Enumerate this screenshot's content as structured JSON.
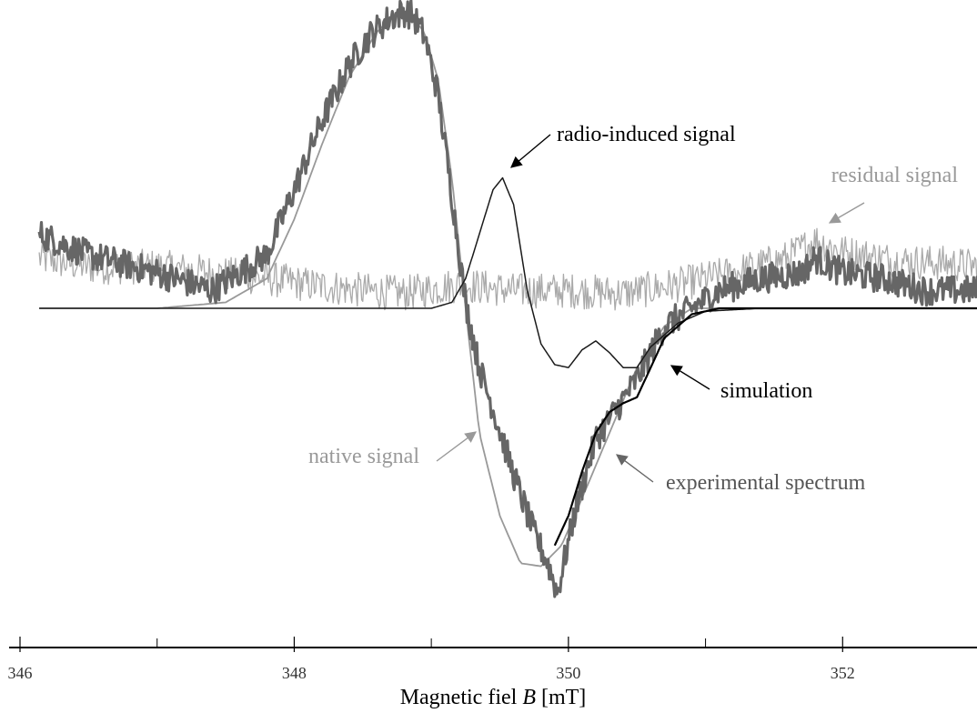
{
  "chart_data": {
    "type": "line",
    "title": "",
    "xlabel": {
      "prefix": "Magnetic fiel ",
      "var": "B",
      "unit": " [mT]"
    },
    "ylabel": "",
    "xlim": [
      346,
      353
    ],
    "ylim": [
      -1.0,
      1.0
    ],
    "x_ticks": [
      346,
      348,
      350,
      352
    ],
    "x_ticks_minor": [
      346,
      347,
      348,
      349,
      350,
      351,
      352
    ],
    "grid": false,
    "legend": "none",
    "series": [
      {
        "name": "experimental spectrum",
        "color": "#666666",
        "x": [
          346.14,
          346.5,
          347.0,
          347.4,
          347.8,
          348.0,
          348.2,
          348.4,
          348.55,
          348.7,
          348.8,
          348.86,
          348.95,
          349.05,
          349.15,
          349.25,
          349.35,
          349.45,
          349.6,
          349.75,
          349.85,
          349.92,
          350.05,
          350.2,
          350.35,
          350.5,
          350.7,
          350.9,
          351.1,
          351.4,
          351.7,
          351.8,
          352.0,
          352.3,
          352.6,
          353.0
        ],
        "y": [
          0.25,
          0.18,
          0.12,
          0.06,
          0.18,
          0.4,
          0.63,
          0.82,
          0.92,
          0.98,
          1.0,
          0.99,
          0.92,
          0.72,
          0.38,
          0.02,
          -0.2,
          -0.34,
          -0.56,
          -0.76,
          -0.86,
          -0.96,
          -0.68,
          -0.44,
          -0.34,
          -0.24,
          -0.06,
          0.0,
          0.06,
          0.1,
          0.12,
          0.17,
          0.12,
          0.1,
          0.06,
          0.06
        ]
      },
      {
        "name": "native signal",
        "color": "#999999",
        "x": [
          346.14,
          347.0,
          347.5,
          347.8,
          348.0,
          348.2,
          348.4,
          348.6,
          348.75,
          348.85,
          348.95,
          349.05,
          349.15,
          349.25,
          349.35,
          349.5,
          349.65,
          349.8,
          349.95,
          350.1,
          350.3,
          350.5,
          350.7,
          350.9,
          351.2,
          351.6,
          352.0
        ],
        "y": [
          0.0,
          0.0,
          0.02,
          0.1,
          0.3,
          0.55,
          0.78,
          0.93,
          1.0,
          0.99,
          0.93,
          0.77,
          0.44,
          0.0,
          -0.42,
          -0.7,
          -0.86,
          -0.87,
          -0.8,
          -0.64,
          -0.42,
          -0.2,
          -0.06,
          0.0,
          0.0,
          0.0,
          0.0
        ]
      },
      {
        "name": "radio-induced signal",
        "color": "#1a1a1a",
        "x": [
          346.14,
          348.5,
          349.0,
          349.15,
          349.25,
          349.35,
          349.45,
          349.52,
          349.6,
          349.7,
          349.8,
          349.9,
          350.0,
          350.1,
          350.2,
          350.3,
          350.4,
          350.5,
          350.6,
          350.8,
          351.0,
          351.4,
          352.0,
          353.0
        ],
        "y": [
          0.0,
          0.0,
          0.0,
          0.02,
          0.1,
          0.25,
          0.4,
          0.44,
          0.35,
          0.06,
          -0.12,
          -0.19,
          -0.2,
          -0.14,
          -0.11,
          -0.15,
          -0.2,
          -0.2,
          -0.13,
          -0.05,
          -0.01,
          0.0,
          0.0,
          0.0
        ]
      },
      {
        "name": "simulation",
        "color": "#000000",
        "x": [
          349.9,
          350.0,
          350.1,
          350.2,
          350.3,
          350.4,
          350.5,
          350.6,
          350.7,
          350.9,
          351.1,
          351.5,
          352.0,
          352.5,
          353.0
        ],
        "y": [
          -0.8,
          -0.7,
          -0.55,
          -0.42,
          -0.35,
          -0.32,
          -0.3,
          -0.2,
          -0.1,
          -0.02,
          0.0,
          0.0,
          0.0,
          0.0,
          0.0
        ]
      },
      {
        "name": "residual signal",
        "color": "#aaaaaa",
        "x": [
          346.14,
          346.5,
          347.0,
          347.4,
          347.8,
          348.1,
          348.5,
          348.8,
          349.2,
          349.6,
          350.0,
          350.4,
          350.8,
          351.2,
          351.6,
          351.8,
          352.0,
          352.4,
          352.8,
          353.0
        ],
        "y": [
          0.17,
          0.14,
          0.14,
          0.12,
          0.1,
          0.08,
          0.06,
          0.05,
          0.08,
          0.06,
          0.06,
          0.05,
          0.08,
          0.12,
          0.17,
          0.23,
          0.19,
          0.16,
          0.15,
          0.14
        ]
      }
    ],
    "annotations": [
      {
        "text": "radio-induced signal",
        "color": "#000000",
        "series": "radio-induced signal"
      },
      {
        "text": "residual signal",
        "color": "#999999",
        "series": "residual signal"
      },
      {
        "text": "simulation",
        "color": "#000000",
        "series": "simulation"
      },
      {
        "text": "native signal",
        "color": "#999999",
        "series": "native signal"
      },
      {
        "text": "experimental spectrum",
        "color": "#555555",
        "series": "experimental spectrum"
      }
    ]
  }
}
